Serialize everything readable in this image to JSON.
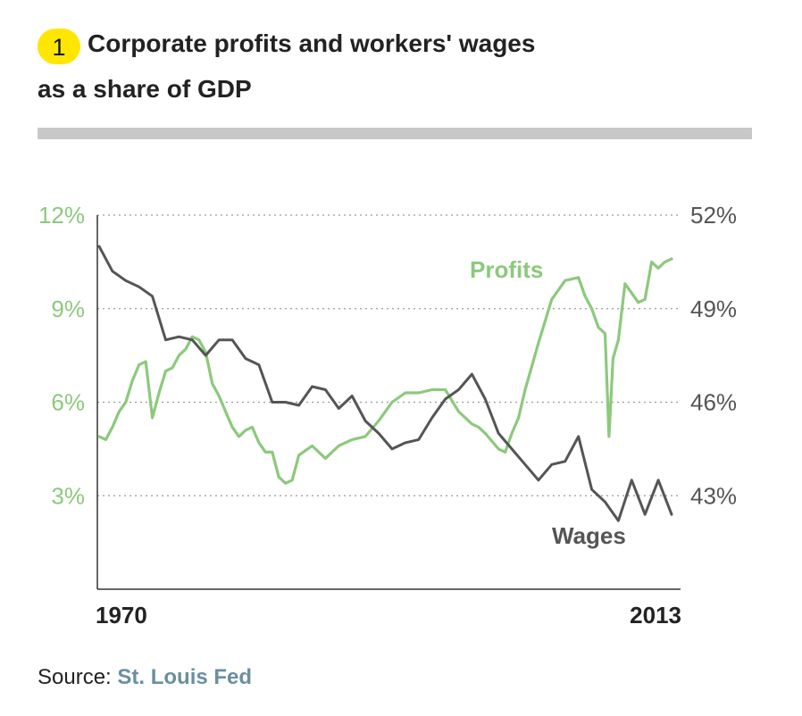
{
  "header": {
    "badge_number": "1",
    "title_line1": "Corporate profits and workers' wages",
    "title_line2": "as a share of GDP"
  },
  "footer": {
    "source_prefix": "Source: ",
    "source_name": "St. Louis Fed"
  },
  "colors": {
    "profits": "#8cc97c",
    "wages": "#555555",
    "badge": "#ffe600",
    "rule": "#c8c8c8",
    "source_link": "#6a8fa0"
  },
  "chart_data": {
    "type": "line",
    "title": "",
    "left_axis": {
      "unit": "profits",
      "ticks": [
        "12%",
        "9%",
        "6%",
        "3%"
      ],
      "tick_values": [
        12,
        9,
        6,
        3
      ],
      "range": [
        0,
        12
      ]
    },
    "right_axis": {
      "unit": "wages",
      "ticks": [
        "52%",
        "49%",
        "46%",
        "43%"
      ],
      "tick_values": [
        52,
        49,
        46,
        43
      ],
      "range": [
        40,
        52
      ]
    },
    "x_axis": {
      "labels": [
        "1970",
        "2013"
      ],
      "range": [
        1970,
        2013
      ]
    },
    "grid": "dotted horizontal",
    "series": [
      {
        "name": "Profits",
        "axis": "left",
        "x": [
          1970,
          1970.5,
          1971,
          1971.5,
          1972,
          1972.5,
          1973,
          1973.5,
          1974,
          1974.5,
          1975,
          1975.5,
          1976,
          1976.5,
          1977,
          1977.5,
          1978,
          1978.5,
          1979,
          1979.5,
          1980,
          1980.5,
          1981,
          1981.5,
          1982,
          1982.5,
          1983,
          1983.5,
          1984,
          1984.5,
          1985,
          1986,
          1987,
          1988,
          1989,
          1990,
          1991,
          1992,
          1993,
          1994,
          1995,
          1996,
          1997,
          1998,
          1998.5,
          1999,
          2000,
          2000.5,
          2001,
          2001.5,
          2002,
          2003,
          2004,
          2005,
          2006,
          2006.5,
          2007,
          2007.5,
          2008,
          2008.3,
          2008.6,
          2009,
          2009.5,
          2010,
          2010.5,
          2011,
          2011.5,
          2012,
          2012.5,
          2013
        ],
        "values": [
          4.9,
          4.8,
          5.2,
          5.7,
          6.0,
          6.7,
          7.2,
          7.3,
          5.5,
          6.3,
          7.0,
          7.1,
          7.5,
          7.7,
          8.1,
          8.0,
          7.6,
          6.6,
          6.2,
          5.7,
          5.2,
          4.9,
          5.1,
          5.2,
          4.7,
          4.4,
          4.4,
          3.6,
          3.4,
          3.5,
          4.3,
          4.6,
          4.2,
          4.6,
          4.8,
          4.9,
          5.4,
          6.0,
          6.3,
          6.3,
          6.4,
          6.4,
          5.7,
          5.3,
          5.2,
          5.0,
          4.5,
          4.4,
          5.0,
          5.5,
          6.4,
          7.9,
          9.3,
          9.9,
          10.0,
          9.4,
          9.0,
          8.4,
          8.2,
          4.9,
          7.4,
          8.0,
          9.8,
          9.5,
          9.2,
          9.3,
          10.5,
          10.3,
          10.5,
          10.6
        ]
      },
      {
        "name": "Wages",
        "axis": "right",
        "x": [
          1970,
          1971,
          1972,
          1973,
          1974,
          1975,
          1976,
          1977,
          1978,
          1979,
          1980,
          1981,
          1982,
          1983,
          1984,
          1985,
          1986,
          1987,
          1988,
          1989,
          1990,
          1991,
          1992,
          1993,
          1994,
          1995,
          1996,
          1997,
          1998,
          1999,
          2000,
          2001,
          2002,
          2003,
          2004,
          2005,
          2006,
          2007,
          2008,
          2009,
          2010,
          2011,
          2012,
          2013
        ],
        "values": [
          51.0,
          50.2,
          49.9,
          49.7,
          49.4,
          48.0,
          48.1,
          48.0,
          47.5,
          48.0,
          48.0,
          47.4,
          47.2,
          46.0,
          46.0,
          45.9,
          46.5,
          46.4,
          45.8,
          46.2,
          45.4,
          45.0,
          44.5,
          44.7,
          44.8,
          45.5,
          46.1,
          46.4,
          46.9,
          46.1,
          45.0,
          44.5,
          44.0,
          43.5,
          44.0,
          44.1,
          44.9,
          43.2,
          42.8,
          42.2,
          43.5,
          42.4,
          43.5,
          42.4
        ]
      }
    ],
    "series_labels": {
      "profits": "Profits",
      "wages": "Wages"
    }
  }
}
